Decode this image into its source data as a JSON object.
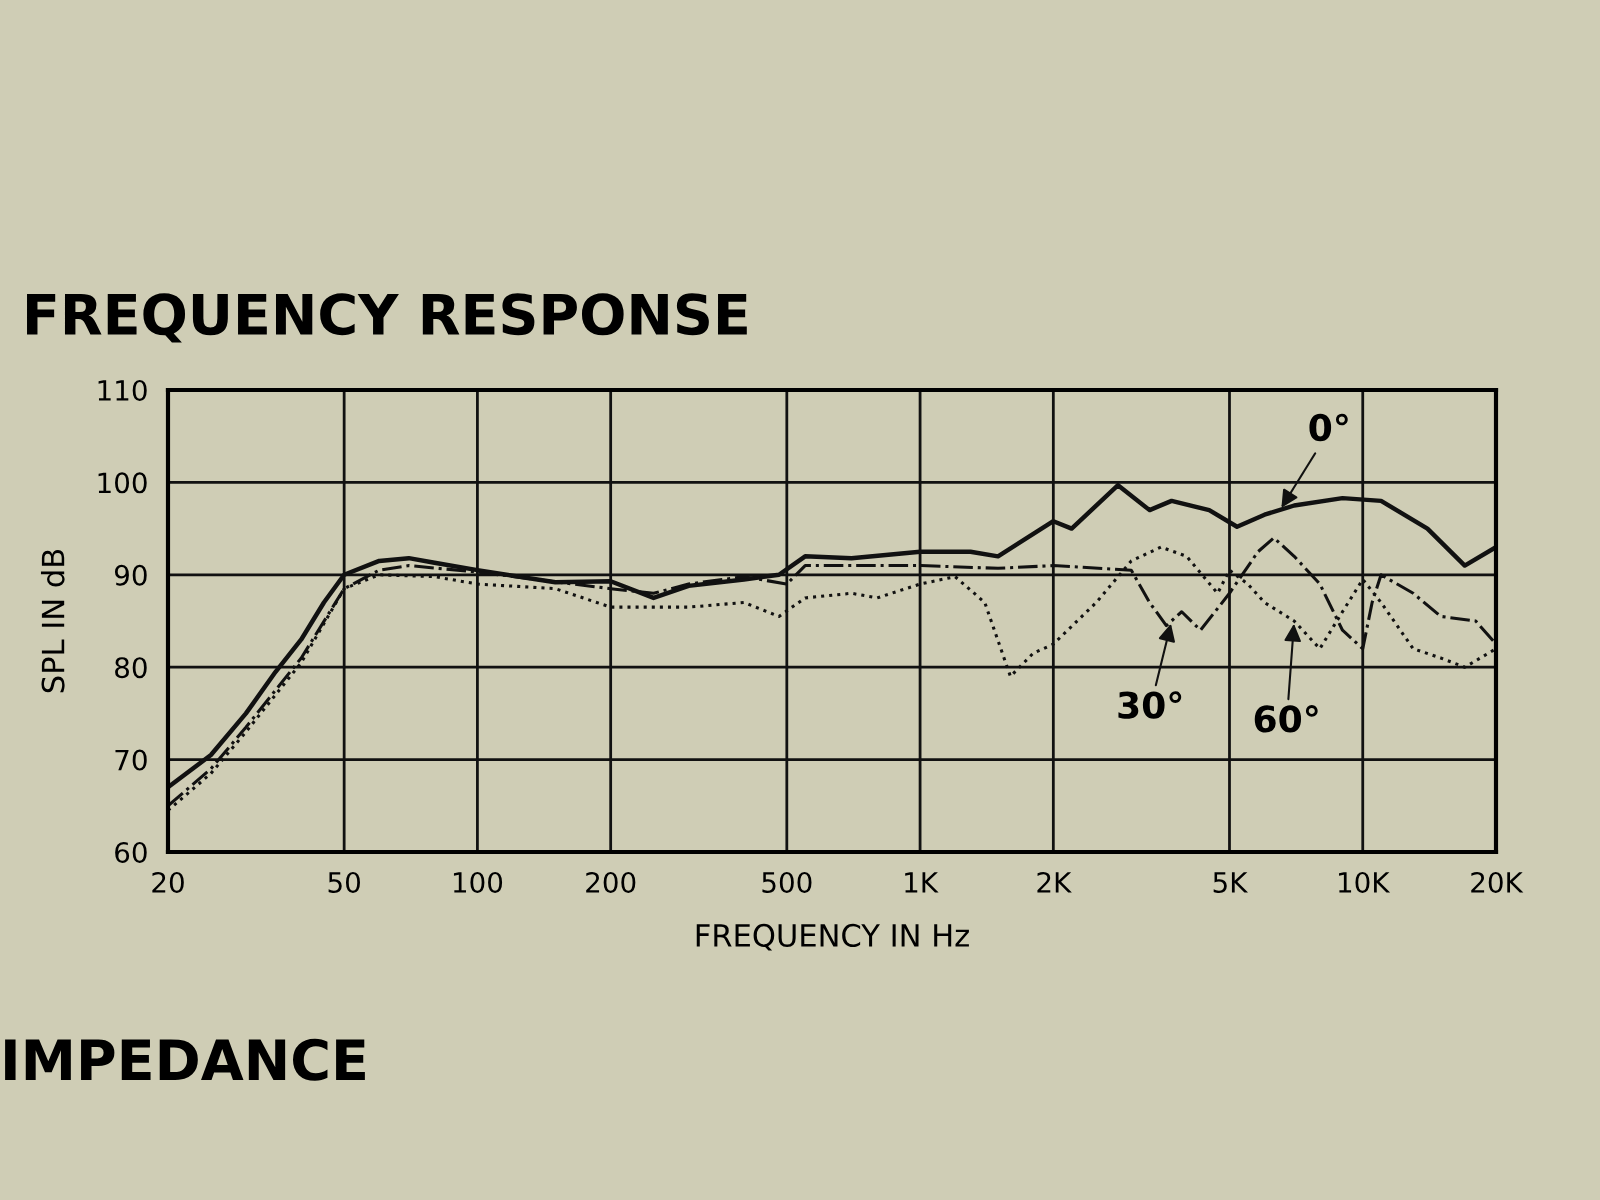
{
  "chart_data": {
    "type": "line",
    "title": "FREQUENCY RESPONSE",
    "xlabel": "FREQUENCY IN Hz",
    "ylabel": "SPL IN dB",
    "log": "x",
    "grid": true,
    "legend": false,
    "xlim": [
      20,
      20000
    ],
    "xticks": [
      20,
      50,
      100,
      200,
      500,
      {
        "value": 1000,
        "label": "1K"
      },
      {
        "value": 2000,
        "label": "2K"
      },
      {
        "value": 5000,
        "label": "5K"
      },
      {
        "value": 10000,
        "label": "10K"
      },
      {
        "value": 20000,
        "label": "20K"
      }
    ],
    "ylim": [
      60,
      110
    ],
    "yticks": [
      60,
      70,
      80,
      90,
      100,
      110
    ],
    "series": [
      {
        "color": "#111111",
        "line_style": "solid",
        "x": [
          20,
          25,
          30,
          35,
          40,
          45,
          50,
          60,
          70,
          80,
          100,
          150,
          200,
          250,
          300,
          400,
          480,
          550,
          700,
          1000,
          1300,
          1500,
          2000,
          2200,
          2800,
          3300,
          3700,
          4500,
          5200,
          6000,
          7000,
          9000,
          11000,
          14000,
          17000,
          20000
        ],
        "values": [
          67,
          70.5,
          75,
          79.5,
          83,
          87,
          90,
          91.5,
          91.8,
          91.3,
          90.5,
          89.2,
          89.3,
          87.5,
          88.8,
          89.5,
          90,
          92,
          91.8,
          92.5,
          92.5,
          92,
          95.8,
          95,
          99.7,
          97,
          98,
          97,
          95.2,
          96.5,
          97.5,
          98.3,
          98,
          95,
          91,
          93
        ]
      },
      {
        "color": "#111111",
        "line_style": "dashdot",
        "x": [
          20,
          25,
          30,
          40,
          50,
          60,
          70,
          100,
          200,
          250,
          300,
          400,
          500,
          550,
          700,
          1000,
          1500,
          2000,
          3000,
          3300,
          3600,
          3900,
          4300,
          5000,
          5800,
          6300,
          7000,
          8000,
          9000,
          10000,
          10500,
          11000,
          13000,
          15000,
          18000,
          20000
        ],
        "values": [
          65,
          69,
          73.5,
          81,
          88.5,
          90.5,
          91,
          90.3,
          88.5,
          88,
          89,
          89.8,
          89,
          91,
          91,
          91,
          90.7,
          91,
          90.5,
          87,
          84.5,
          86,
          84,
          88,
          92.5,
          94,
          92,
          89,
          84,
          82,
          87,
          90,
          88,
          85.5,
          85,
          82.5
        ]
      },
      {
        "color": "#111111",
        "line_style": "dotted",
        "x": [
          20,
          25,
          30,
          40,
          50,
          60,
          80,
          100,
          150,
          200,
          300,
          400,
          480,
          550,
          700,
          800,
          1000,
          1200,
          1400,
          1600,
          1800,
          2000,
          2500,
          3000,
          3500,
          4000,
          4700,
          5000,
          5500,
          6000,
          7000,
          8000,
          9000,
          10000,
          11000,
          13000,
          15000,
          17000,
          20000
        ],
        "values": [
          64.5,
          68.5,
          73,
          80.5,
          88.5,
          90,
          89.8,
          89,
          88.5,
          86.5,
          86.5,
          87,
          85.5,
          87.5,
          88,
          87.5,
          89,
          89.8,
          87,
          79,
          81.5,
          82.5,
          87,
          91.5,
          93,
          92,
          88,
          90.5,
          89,
          87,
          85,
          82,
          86,
          89.5,
          87,
          82,
          81,
          80,
          82
        ]
      }
    ],
    "annotations": [
      {
        "text": "0°",
        "x": 6500,
        "y": 97
      },
      {
        "text": "30°",
        "x": 3700,
        "y": 85
      },
      {
        "text": "60°",
        "x": 7000,
        "y": 85
      },
      "IMPEDANCE"
    ]
  }
}
